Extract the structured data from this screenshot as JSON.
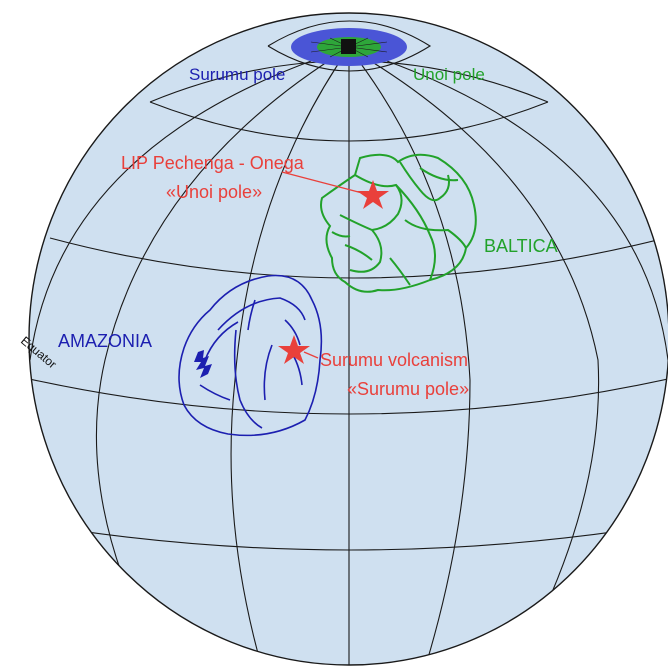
{
  "colors": {
    "ocean": "#cfe0f0",
    "grid": "#1a1a1a",
    "amazonia": "#1c1fb0",
    "baltica": "#22a22a",
    "volcanic_star": "#e9403b",
    "surumu_pole": "#4a55d6",
    "unoi_pole": "#2ea63a",
    "pole_mark": "#111111",
    "equator_label": "#111111"
  },
  "labels": {
    "surumu_pole": "Surumu pole",
    "unoi_pole": "Unoi pole",
    "lip_line1": "LIP Pechenga - Onega",
    "lip_line2": "«Unoi pole»",
    "baltica": "BALTICA",
    "amazonia": "AMAZONIA",
    "surumu_line1": "Surumu volcanism",
    "surumu_line2": "«Surumu pole»",
    "equator": "Equator"
  },
  "icons": {
    "craton_star": "star-icon",
    "pole_marker": "square-icon"
  }
}
